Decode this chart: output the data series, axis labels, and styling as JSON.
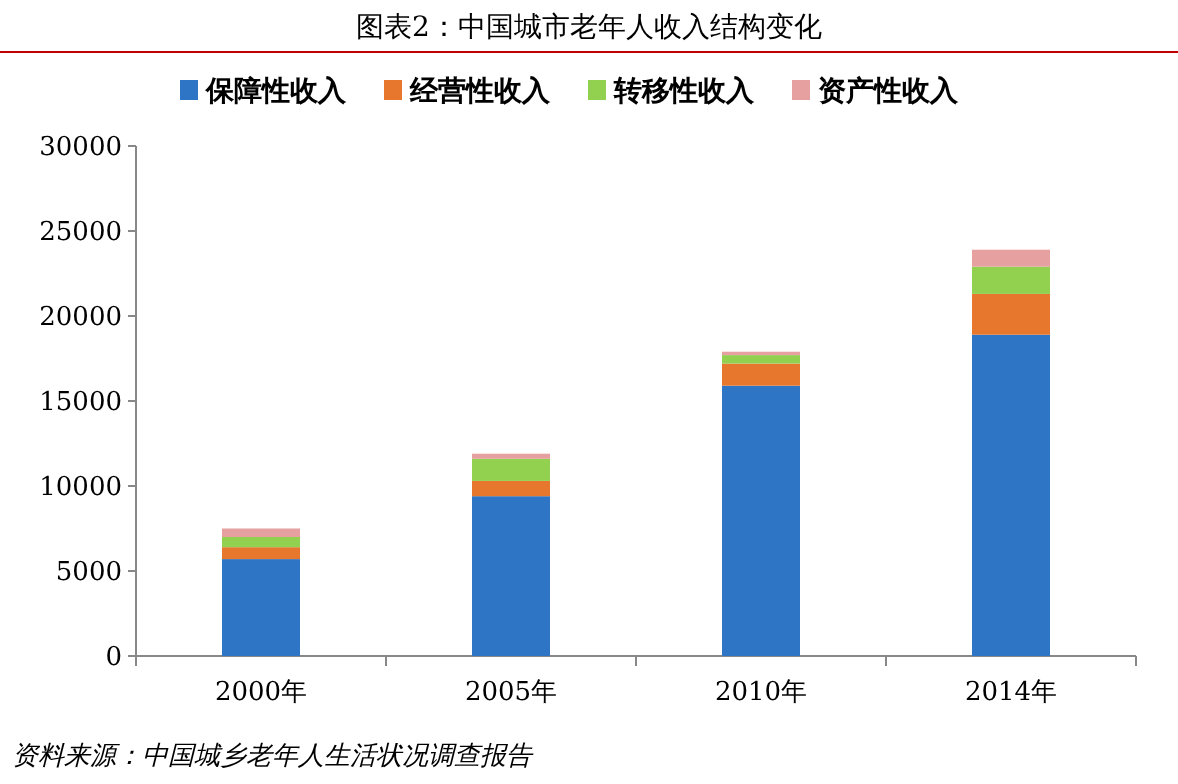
{
  "chart_data": {
    "type": "bar",
    "title": "图表2：中国城市老年人收入结构变化",
    "stacked": true,
    "legend": "top",
    "categories": [
      "2000年",
      "2005年",
      "2010年",
      "2014年"
    ],
    "series": [
      {
        "name": "保障性收入",
        "color": "#2e75c6",
        "values": [
          5700,
          9400,
          15900,
          18900
        ]
      },
      {
        "name": "经营性收入",
        "color": "#e8772e",
        "values": [
          700,
          900,
          1300,
          2400
        ]
      },
      {
        "name": "转移性收入",
        "color": "#92d050",
        "values": [
          600,
          1300,
          500,
          1600
        ]
      },
      {
        "name": "资产性收入",
        "color": "#e6a0a0",
        "values": [
          500,
          300,
          200,
          1000
        ]
      }
    ],
    "ylim": [
      0,
      30000
    ],
    "yticks": [
      0,
      5000,
      10000,
      15000,
      20000,
      25000,
      30000
    ],
    "annotations": [
      "资料来源：中国城乡老年人生活状况调查报告"
    ]
  }
}
